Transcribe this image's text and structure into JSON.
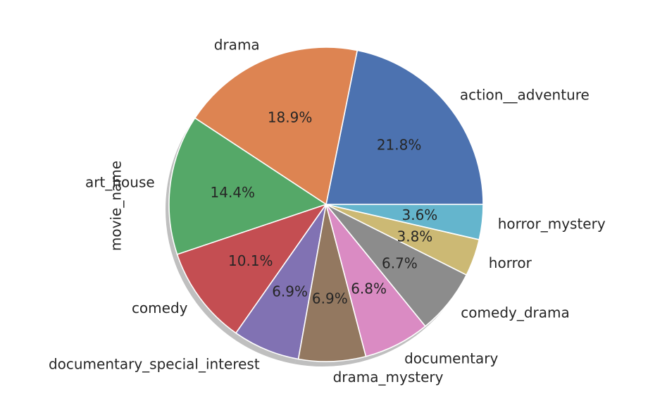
{
  "chart_data": {
    "type": "pie",
    "title": "",
    "ylabel": "movie_name",
    "start_angle_deg": 0,
    "direction": "counterclockwise",
    "shadow": true,
    "label_format": "percent_1_decimal",
    "slices": [
      {
        "label": "action__adventure",
        "value": 21.8,
        "color": "#4c72b0"
      },
      {
        "label": "drama",
        "value": 18.9,
        "color": "#dd8452"
      },
      {
        "label": "art_house",
        "value": 14.4,
        "color": "#55a868"
      },
      {
        "label": "comedy",
        "value": 10.1,
        "color": "#c44e52"
      },
      {
        "label": "documentary_special_interest",
        "value": 6.9,
        "color": "#8172b3"
      },
      {
        "label": "drama_mystery",
        "value": 6.9,
        "color": "#937860"
      },
      {
        "label": "documentary",
        "value": 6.8,
        "color": "#da8bc3"
      },
      {
        "label": "comedy_drama",
        "value": 6.7,
        "color": "#8c8c8c"
      },
      {
        "label": "horror",
        "value": 3.8,
        "color": "#ccb974"
      },
      {
        "label": "horror_mystery",
        "value": 3.6,
        "color": "#64b5cd"
      }
    ]
  }
}
